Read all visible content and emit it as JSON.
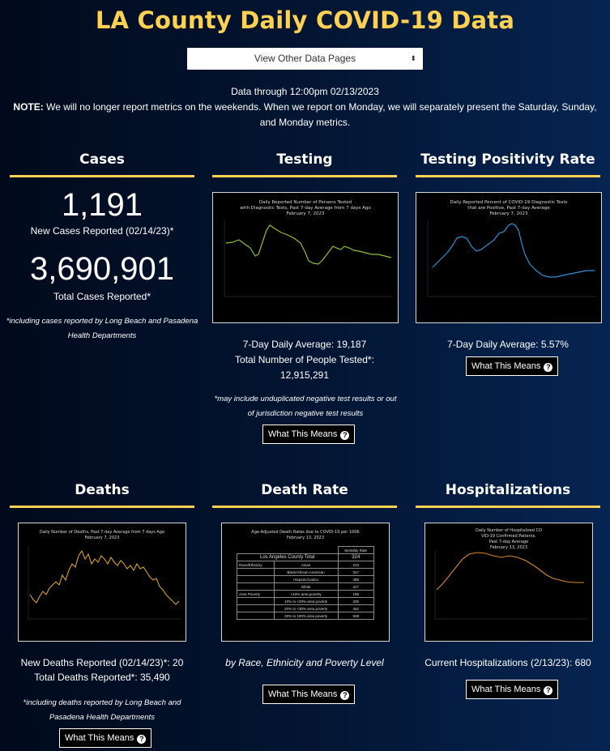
{
  "header": {
    "title": "LA County Daily COVID-19 Data",
    "select_label": "View Other Data Pages",
    "select_arrow": "⬍"
  },
  "notice": {
    "data_through": "Data through 12:00pm 02/13/2023",
    "note_label": "NOTE:",
    "note_line1": " We will no longer report metrics on the weekends. When we report on Monday, we will separately present the Saturday, Sunday,",
    "note_line2": "and Monday metrics."
  },
  "cases": {
    "title": "Cases",
    "new_value": "1,191",
    "new_label": "New Cases Reported (02/14/23)*",
    "total_value": "3,690,901",
    "total_label": "Total Cases Reported*",
    "footnote_line1": "*including cases reported by Long Beach and Pasadena",
    "footnote_line2": "Health Departments"
  },
  "testing": {
    "title": "Testing",
    "chart_title_line1": "Daily Reported Number of Persons Tested",
    "chart_title_line2": "with Diagnostic Tests, Past 7-day Average from 7 days Ago",
    "chart_title_line3": "February 7, 2023",
    "daily_avg": "7-Day Daily Average: 19,187",
    "total_label": "Total Number of People Tested*:",
    "total_value": "12,915,291",
    "footnote_line1": "*may include unduplicated negative test results or out",
    "footnote_line2": "of jurisdiction negative test results",
    "button": "What This Means"
  },
  "positivity": {
    "title": "Testing Positivity Rate",
    "chart_title_line1": "Daily Reported Percent of COVID-19 Diagnostic Tests",
    "chart_title_line2": "that are Positive, Past 7-day Average",
    "chart_title_line3": "February 7, 2023",
    "daily_avg": "7-Day Daily Average: 5.57%",
    "button": "What This Means"
  },
  "deaths": {
    "title": "Deaths",
    "chart_title_line1": "Daily Number of Deaths, Past 7-day Average from 7 days Ago",
    "chart_title_line2": "February 7, 2023",
    "new_label": "New Deaths Reported (02/14/23)*: 20",
    "total_label": "Total Deaths Reported*: 35,490",
    "footnote_line1": "*including deaths reported by Long Beach and",
    "footnote_line2": "Pasadena Health Departments",
    "button": "What This Means"
  },
  "death_rate": {
    "title": "Death Rate",
    "chart_title_line1": "Age-Adjusted Death Rates due to COVID-19 per 100K",
    "chart_title_line2": "February 13, 2023",
    "table_header": "Mortality Rate",
    "county_label": "Los Angeles County Total",
    "county_value": "324",
    "rows": [
      {
        "group": "Race/Ethnicity",
        "label": "Asian",
        "value": "223"
      },
      {
        "group": "",
        "label": "Black/African American",
        "value": "347"
      },
      {
        "group": "",
        "label": "Hispanic/Latino",
        "value": "485"
      },
      {
        "group": "",
        "label": "White",
        "value": "247"
      },
      {
        "group": "Area Poverty",
        "label": "<10% area poverty",
        "value": "195"
      },
      {
        "group": "",
        "label": "10% to <20% area poverty",
        "value": "336"
      },
      {
        "group": "",
        "label": "20% to <30% area poverty",
        "value": "452"
      },
      {
        "group": "",
        "label": "30% to 100% area poverty",
        "value": "508"
      }
    ],
    "caption": "by Race, Ethnicity and Poverty Level",
    "button": "What This Means"
  },
  "hospitalizations": {
    "title": "Hospitalizations",
    "chart_title_line1": "Daily Number of Hospitalized CO",
    "chart_title_line2": "VID-19 Confirmed Patients,",
    "chart_title_line3": "Past 7-day Average",
    "chart_title_line4": "February 13, 2023",
    "current_label": "Current Hospitalizations (2/13/23): 680",
    "button": "What This Means"
  },
  "colors": {
    "accent": "#ffd152",
    "testing_line": "#8fbf2e",
    "positivity_line": "#2f8fd6",
    "deaths_line": "#d9a21c",
    "hosp_line": "#d9862a"
  }
}
